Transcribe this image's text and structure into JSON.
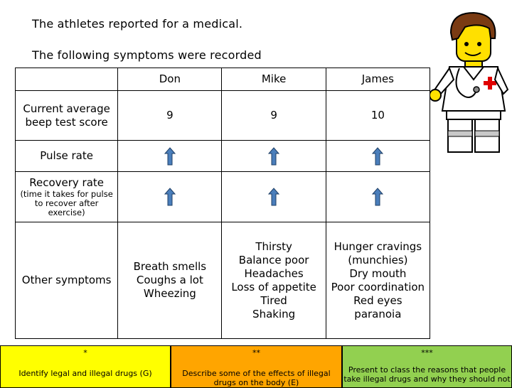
{
  "intro": {
    "line1": "The athletes reported for a medical.",
    "line2": "The following symptoms were recorded"
  },
  "table": {
    "headers": [
      "",
      "Don",
      "Mike",
      "James"
    ],
    "rows": [
      {
        "label": "Current average beep test score",
        "values": [
          "9",
          "9",
          "10"
        ]
      },
      {
        "label": "Pulse rate",
        "arrows": [
          "up",
          "up",
          "up"
        ]
      },
      {
        "label": "Recovery rate",
        "sublabel": "(time it takes for pulse to recover after exercise)",
        "arrows": [
          "up",
          "up",
          "up"
        ]
      },
      {
        "label": "Other symptoms",
        "symptoms": [
          "Breath smells\nCoughs a lot\nWheezing",
          "Thirsty\nBalance poor\nHeadaches\nLoss of appetite\nTired\nShaking",
          "Hunger cravings\n(munchies)\nDry mouth\nPoor coordination\nRed eyes\nparanoia"
        ]
      }
    ]
  },
  "objectives": [
    {
      "stars": "*",
      "text": "Identify legal and illegal drugs (G)",
      "color": "#ffff00"
    },
    {
      "stars": "**",
      "text": "Describe some of the effects of illegal drugs on the body (E)",
      "color": "#ffa500"
    },
    {
      "stars": "***",
      "text": "Present to class the reasons that people take illegal drugs and why they should not",
      "color": "#92d050"
    }
  ],
  "colors": {
    "arrow_fill": "#4a7ebb",
    "arrow_stroke": "#1f3f66"
  },
  "icons": {
    "doctor": "lego-doctor-figure-icon",
    "arrow": "up-arrow-icon"
  }
}
